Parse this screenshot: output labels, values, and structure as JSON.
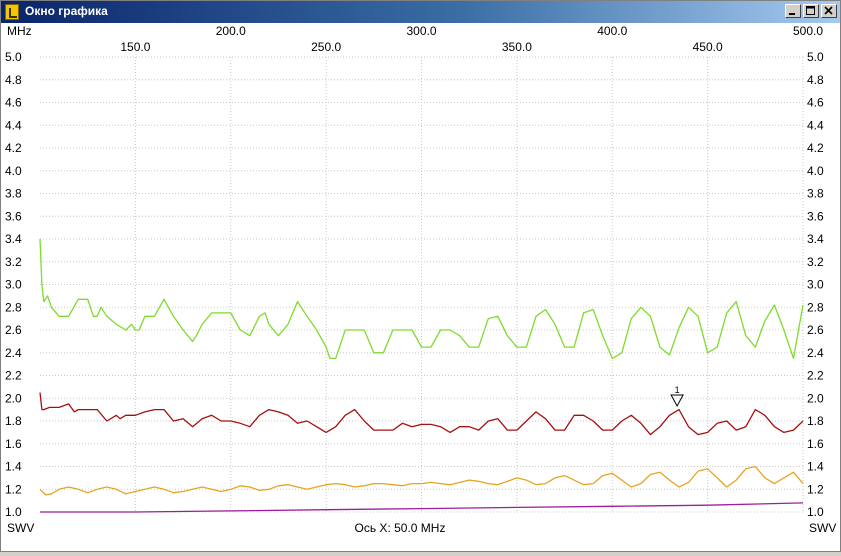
{
  "window": {
    "title": "Окно графика"
  },
  "chart_data": {
    "type": "line",
    "x_unit": "MHz",
    "xlim": [
      100,
      500
    ],
    "ylim": [
      1.0,
      5.0
    ],
    "x_ticks": [
      "150.0",
      "200.0",
      "250.0",
      "300.0",
      "350.0",
      "400.0",
      "450.0",
      "500.0"
    ],
    "y_ticks": [
      "1.0",
      "1.2",
      "1.4",
      "1.6",
      "1.8",
      "2.0",
      "2.2",
      "2.4",
      "2.6",
      "2.8",
      "3.0",
      "3.2",
      "3.4",
      "3.6",
      "3.8",
      "4.0",
      "4.2",
      "4.4",
      "4.6",
      "4.8",
      "5.0"
    ],
    "y_label_left": "SWV",
    "y_label_right": "SWV",
    "x_axis_note": "Ось X: 50.0 MHz",
    "marker": {
      "label": "1",
      "x": 434,
      "y": 1.95
    },
    "series": [
      {
        "color": "#7fdb2e",
        "x": [
          100,
          101,
          102,
          104,
          106,
          110,
          115,
          120,
          125,
          128,
          130,
          132,
          135,
          140,
          145,
          148,
          150,
          152,
          155,
          160,
          165,
          170,
          175,
          180,
          182,
          185,
          190,
          195,
          200,
          205,
          210,
          215,
          218,
          220,
          225,
          230,
          235,
          240,
          245,
          250,
          252,
          255,
          258,
          260,
          265,
          270,
          275,
          280,
          285,
          290,
          295,
          300,
          305,
          310,
          315,
          320,
          325,
          330,
          335,
          340,
          345,
          350,
          355,
          360,
          365,
          370,
          375,
          380,
          385,
          390,
          395,
          400,
          405,
          410,
          415,
          420,
          425,
          430,
          435,
          440,
          445,
          450,
          455,
          460,
          465,
          470,
          475,
          480,
          485,
          490,
          495,
          500
        ],
        "y": [
          3.4,
          3.0,
          2.85,
          2.9,
          2.8,
          2.72,
          2.72,
          2.87,
          2.87,
          2.72,
          2.72,
          2.8,
          2.72,
          2.65,
          2.6,
          2.65,
          2.6,
          2.6,
          2.72,
          2.72,
          2.87,
          2.72,
          2.6,
          2.5,
          2.55,
          2.65,
          2.75,
          2.75,
          2.75,
          2.6,
          2.55,
          2.72,
          2.75,
          2.65,
          2.55,
          2.65,
          2.85,
          2.72,
          2.6,
          2.45,
          2.35,
          2.35,
          2.5,
          2.6,
          2.6,
          2.6,
          2.4,
          2.4,
          2.6,
          2.6,
          2.6,
          2.45,
          2.45,
          2.6,
          2.6,
          2.55,
          2.45,
          2.45,
          2.7,
          2.72,
          2.55,
          2.45,
          2.45,
          2.72,
          2.78,
          2.65,
          2.45,
          2.45,
          2.75,
          2.78,
          2.55,
          2.35,
          2.4,
          2.7,
          2.8,
          2.72,
          2.45,
          2.38,
          2.62,
          2.8,
          2.72,
          2.4,
          2.45,
          2.75,
          2.85,
          2.55,
          2.45,
          2.68,
          2.82,
          2.6,
          2.35,
          2.82
        ]
      },
      {
        "color": "#a61010",
        "x": [
          100,
          101,
          102,
          105,
          110,
          115,
          118,
          120,
          125,
          130,
          135,
          140,
          142,
          145,
          150,
          155,
          160,
          165,
          170,
          175,
          180,
          185,
          190,
          195,
          200,
          205,
          210,
          215,
          220,
          225,
          230,
          235,
          240,
          245,
          250,
          255,
          260,
          265,
          270,
          275,
          280,
          285,
          290,
          295,
          300,
          305,
          310,
          315,
          320,
          325,
          330,
          335,
          340,
          345,
          350,
          355,
          360,
          365,
          370,
          375,
          380,
          385,
          390,
          395,
          400,
          405,
          410,
          415,
          420,
          425,
          430,
          435,
          440,
          445,
          450,
          455,
          460,
          465,
          470,
          475,
          480,
          485,
          490,
          495,
          500
        ],
        "y": [
          2.05,
          1.9,
          1.9,
          1.92,
          1.92,
          1.95,
          1.88,
          1.9,
          1.9,
          1.9,
          1.8,
          1.85,
          1.82,
          1.85,
          1.85,
          1.88,
          1.9,
          1.9,
          1.8,
          1.82,
          1.75,
          1.82,
          1.85,
          1.8,
          1.8,
          1.78,
          1.75,
          1.85,
          1.9,
          1.88,
          1.85,
          1.78,
          1.8,
          1.75,
          1.7,
          1.75,
          1.85,
          1.9,
          1.8,
          1.72,
          1.72,
          1.72,
          1.78,
          1.75,
          1.77,
          1.77,
          1.75,
          1.7,
          1.75,
          1.75,
          1.72,
          1.8,
          1.82,
          1.72,
          1.72,
          1.8,
          1.88,
          1.82,
          1.72,
          1.72,
          1.85,
          1.85,
          1.8,
          1.72,
          1.72,
          1.8,
          1.85,
          1.78,
          1.68,
          1.75,
          1.85,
          1.9,
          1.75,
          1.68,
          1.7,
          1.78,
          1.8,
          1.72,
          1.75,
          1.9,
          1.85,
          1.75,
          1.7,
          1.72,
          1.8
        ]
      },
      {
        "color": "#e6a422",
        "x": [
          100,
          103,
          106,
          110,
          115,
          120,
          125,
          130,
          135,
          140,
          145,
          150,
          155,
          160,
          165,
          170,
          175,
          180,
          185,
          190,
          195,
          200,
          205,
          210,
          215,
          220,
          225,
          230,
          235,
          240,
          245,
          250,
          255,
          260,
          265,
          270,
          275,
          280,
          285,
          290,
          295,
          300,
          305,
          310,
          315,
          320,
          325,
          330,
          335,
          340,
          345,
          350,
          355,
          360,
          365,
          370,
          375,
          380,
          385,
          390,
          395,
          400,
          405,
          410,
          415,
          420,
          425,
          430,
          435,
          440,
          445,
          450,
          455,
          460,
          465,
          470,
          475,
          480,
          485,
          490,
          495,
          500
        ],
        "y": [
          1.2,
          1.15,
          1.16,
          1.2,
          1.22,
          1.2,
          1.17,
          1.2,
          1.22,
          1.2,
          1.16,
          1.18,
          1.2,
          1.22,
          1.2,
          1.17,
          1.18,
          1.2,
          1.22,
          1.2,
          1.18,
          1.2,
          1.23,
          1.22,
          1.19,
          1.2,
          1.23,
          1.24,
          1.22,
          1.2,
          1.22,
          1.24,
          1.25,
          1.24,
          1.22,
          1.23,
          1.25,
          1.25,
          1.24,
          1.23,
          1.25,
          1.25,
          1.26,
          1.25,
          1.24,
          1.26,
          1.28,
          1.27,
          1.25,
          1.24,
          1.27,
          1.3,
          1.28,
          1.24,
          1.25,
          1.3,
          1.32,
          1.28,
          1.24,
          1.25,
          1.32,
          1.34,
          1.28,
          1.22,
          1.25,
          1.33,
          1.35,
          1.28,
          1.22,
          1.26,
          1.36,
          1.38,
          1.3,
          1.22,
          1.28,
          1.38,
          1.4,
          1.3,
          1.25,
          1.3,
          1.35,
          1.25
        ]
      },
      {
        "color": "#9b1f9b",
        "x": [
          100,
          150,
          200,
          250,
          300,
          350,
          400,
          450,
          500
        ],
        "y": [
          1.0,
          1.0,
          1.01,
          1.02,
          1.03,
          1.04,
          1.05,
          1.06,
          1.08
        ]
      }
    ]
  }
}
